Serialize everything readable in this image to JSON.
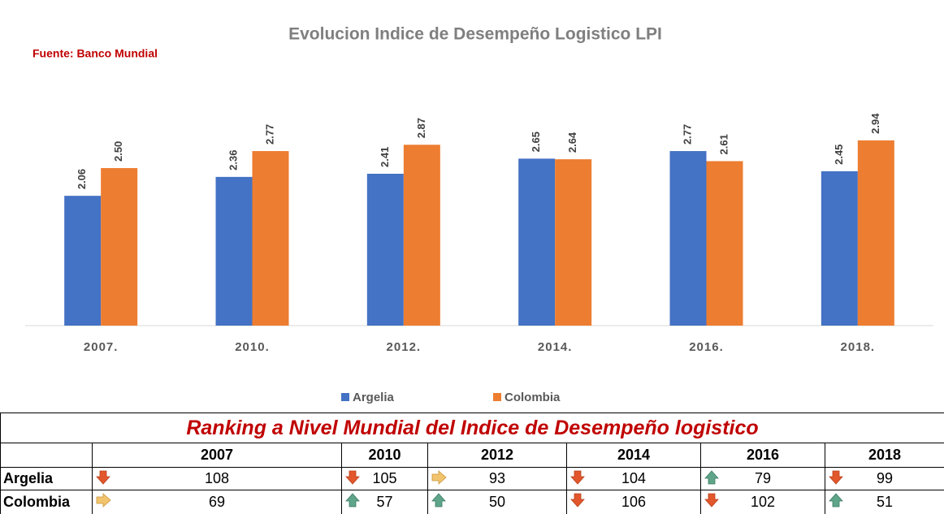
{
  "chart_data": {
    "type": "bar",
    "title": "Evolucion Indice de Desempeño Logistico LPI",
    "subtitle": "Fuente: Banco Mundial",
    "categories": [
      "2007.",
      "2010.",
      "2012.",
      "2014.",
      "2016.",
      "2018."
    ],
    "series": [
      {
        "name": "Argelia",
        "color": "#4472c4",
        "values": [
          2.06,
          2.36,
          2.41,
          2.65,
          2.77,
          2.45
        ],
        "value_labels": [
          "2.06",
          "2.36",
          "2.41",
          "2.65",
          "2.77",
          "2.45"
        ]
      },
      {
        "name": "Colombia",
        "color": "#ed7d31",
        "values": [
          2.5,
          2.77,
          2.87,
          2.64,
          2.61,
          2.94
        ],
        "value_labels": [
          "2.50",
          "2.77",
          "2.87",
          "2.64",
          "2.61",
          "2.94"
        ]
      }
    ],
    "ylim": [
      0,
      5
    ],
    "legend": "bottom"
  },
  "table": {
    "title": "Ranking a Nivel Mundial del Indice de Desempeño logistico",
    "header": [
      "2007",
      "2010",
      "2012",
      "2014",
      "2016",
      "2018"
    ],
    "rows": [
      {
        "name": "Argelia",
        "values": [
          "108",
          "105",
          "93",
          "104",
          "79",
          "99"
        ],
        "trends": [
          "down",
          "down",
          "right",
          "down",
          "up",
          "down"
        ]
      },
      {
        "name": "Colombia",
        "values": [
          "69",
          "57",
          "50",
          "106",
          "102",
          "51"
        ],
        "trends": [
          "right",
          "up",
          "up",
          "down",
          "down",
          "up"
        ]
      }
    ]
  }
}
